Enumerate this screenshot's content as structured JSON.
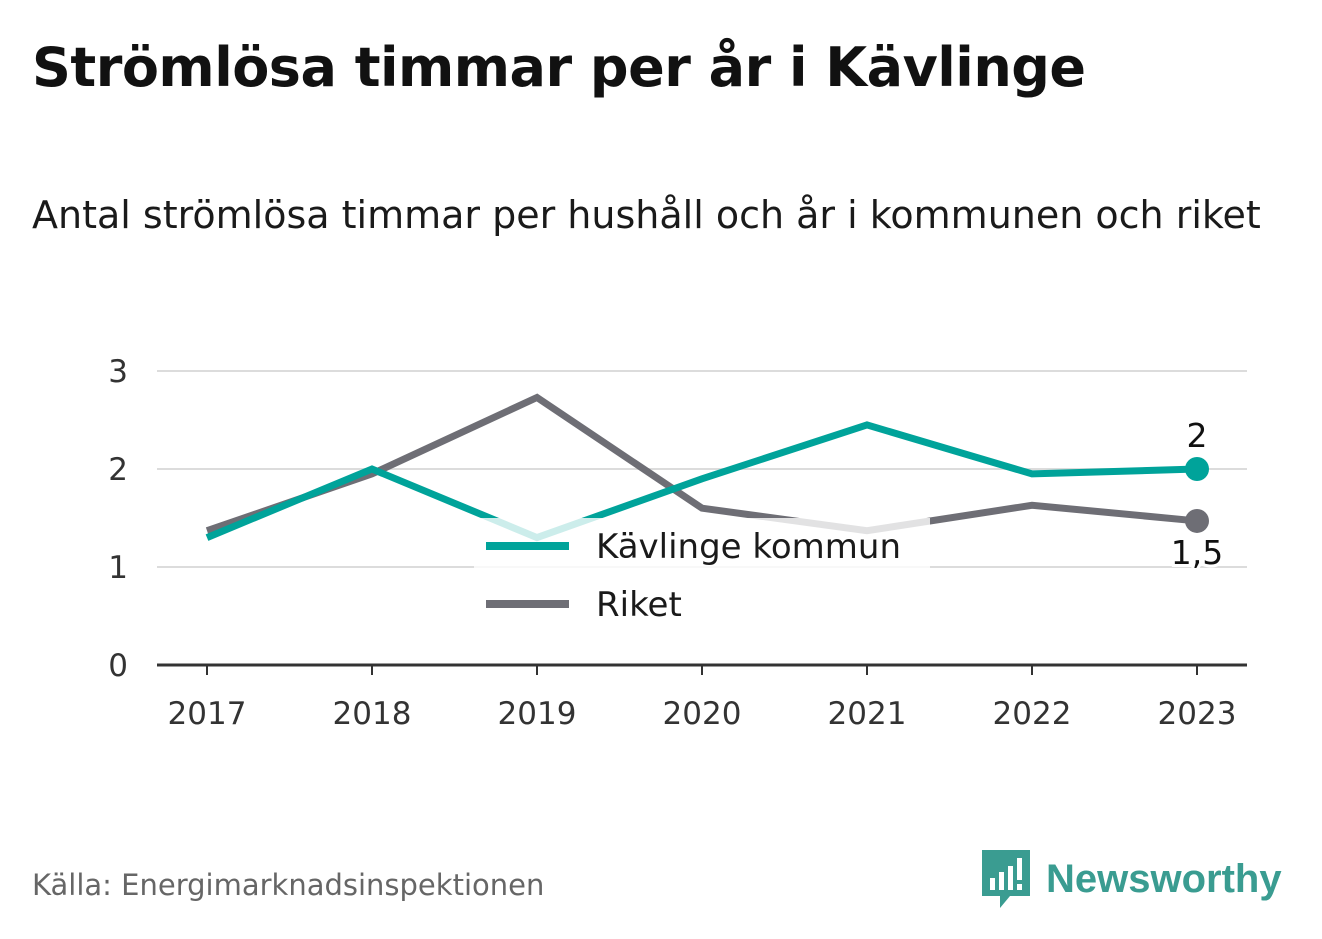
{
  "header": {
    "title": "Strömlösa timmar per år i Kävlinge",
    "subtitle": "Antal strömlösa timmar per hushåll och år i kommunen och riket"
  },
  "footer": {
    "source": "Källa: Energimarknadsinspektionen",
    "brand": "Newsworthy",
    "brand_icon": "bar-chart-speech-bubble-icon"
  },
  "colors": {
    "kommun": "#00a39a",
    "riket": "#6e6e75",
    "grid": "#dcdcdc",
    "axis": "#333333"
  },
  "chart_data": {
    "type": "line",
    "x": [
      "2017",
      "2018",
      "2019",
      "2020",
      "2021",
      "2022",
      "2023"
    ],
    "ylim": [
      0,
      3
    ],
    "yticks": [
      "0",
      "1",
      "2",
      "3"
    ],
    "grid": true,
    "legend_position": "center",
    "series": [
      {
        "name": "Kävlinge kommun",
        "values": [
          1.3,
          2.0,
          1.3,
          1.9,
          2.45,
          1.95,
          2.0
        ],
        "end_label": "2"
      },
      {
        "name": "Riket",
        "values": [
          1.37,
          1.95,
          2.73,
          1.6,
          1.37,
          1.63,
          1.47
        ],
        "end_label": "1,5"
      }
    ]
  }
}
